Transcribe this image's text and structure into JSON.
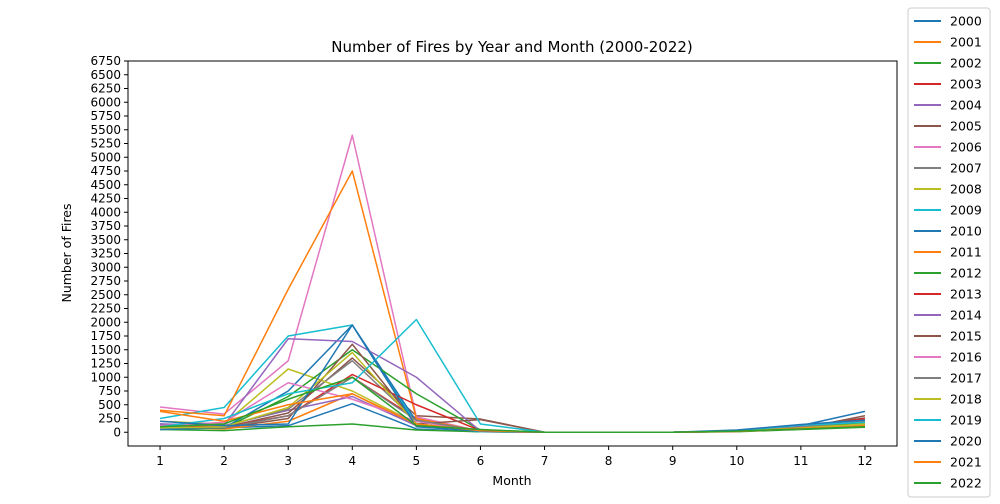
{
  "chart_data": {
    "type": "line",
    "title": "Number of Fires by Year and Month (2000-2022)",
    "xlabel": "Month",
    "ylabel": "Number of Fires",
    "categories": [
      "1",
      "2",
      "3",
      "4",
      "5",
      "6",
      "7",
      "8",
      "9",
      "10",
      "11",
      "12"
    ],
    "ylim": [
      -250,
      6750
    ],
    "yticks": [
      0,
      250,
      500,
      750,
      1000,
      1250,
      1500,
      1750,
      2000,
      2250,
      2500,
      2750,
      3000,
      3250,
      3500,
      3750,
      4000,
      4250,
      4500,
      4750,
      5000,
      5250,
      5500,
      5750,
      6000,
      6250,
      6500,
      6750
    ],
    "grid": false,
    "legend_position": "right",
    "series": [
      {
        "name": "2000",
        "color": "#1f77b4",
        "values": [
          150,
          80,
          120,
          520,
          60,
          10,
          0,
          0,
          0,
          20,
          120,
          380
        ]
      },
      {
        "name": "2001",
        "color": "#ff7f0e",
        "values": [
          100,
          60,
          200,
          700,
          120,
          20,
          0,
          0,
          0,
          15,
          60,
          100
        ]
      },
      {
        "name": "2002",
        "color": "#2ca02c",
        "values": [
          50,
          30,
          100,
          150,
          40,
          10,
          0,
          0,
          0,
          10,
          50,
          90
        ]
      },
      {
        "name": "2003",
        "color": "#d62728",
        "values": [
          120,
          100,
          300,
          1000,
          250,
          20,
          0,
          0,
          0,
          20,
          80,
          150
        ]
      },
      {
        "name": "2004",
        "color": "#9467bd",
        "values": [
          150,
          120,
          400,
          650,
          120,
          15,
          0,
          0,
          0,
          20,
          90,
          200
        ]
      },
      {
        "name": "2005",
        "color": "#8c564b",
        "values": [
          100,
          90,
          350,
          1350,
          300,
          240,
          0,
          0,
          0,
          15,
          100,
          260
        ]
      },
      {
        "name": "2006",
        "color": "#e377c2",
        "values": [
          460,
          330,
          1300,
          5400,
          280,
          20,
          0,
          0,
          0,
          20,
          80,
          190
        ]
      },
      {
        "name": "2007",
        "color": "#7f7f7f",
        "values": [
          120,
          110,
          420,
          1300,
          200,
          30,
          0,
          0,
          0,
          25,
          90,
          170
        ]
      },
      {
        "name": "2008",
        "color": "#bcbd22",
        "values": [
          200,
          150,
          1150,
          750,
          160,
          20,
          0,
          0,
          0,
          15,
          70,
          120
        ]
      },
      {
        "name": "2009",
        "color": "#17becf",
        "values": [
          250,
          450,
          1750,
          1950,
          150,
          10,
          0,
          0,
          0,
          15,
          80,
          140
        ]
      },
      {
        "name": "2010",
        "color": "#1f77b4",
        "values": [
          50,
          80,
          750,
          1950,
          200,
          30,
          0,
          0,
          0,
          20,
          110,
          200
        ]
      },
      {
        "name": "2011",
        "color": "#ff7f0e",
        "values": [
          400,
          300,
          2600,
          4750,
          250,
          20,
          0,
          0,
          0,
          15,
          70,
          120
        ]
      },
      {
        "name": "2012",
        "color": "#2ca02c",
        "values": [
          90,
          70,
          650,
          1500,
          700,
          40,
          0,
          0,
          0,
          20,
          90,
          160
        ]
      },
      {
        "name": "2013",
        "color": "#d62728",
        "values": [
          120,
          90,
          300,
          1050,
          500,
          30,
          0,
          0,
          0,
          20,
          80,
          250
        ]
      },
      {
        "name": "2014",
        "color": "#9467bd",
        "values": [
          150,
          130,
          1700,
          1650,
          1000,
          20,
          0,
          0,
          0,
          20,
          100,
          220
        ]
      },
      {
        "name": "2015",
        "color": "#8c564b",
        "values": [
          100,
          80,
          250,
          1600,
          150,
          230,
          0,
          0,
          0,
          20,
          70,
          300
        ]
      },
      {
        "name": "2016",
        "color": "#e377c2",
        "values": [
          120,
          180,
          900,
          600,
          200,
          15,
          0,
          0,
          0,
          20,
          60,
          150
        ]
      },
      {
        "name": "2017",
        "color": "#7f7f7f",
        "values": [
          90,
          80,
          300,
          1000,
          220,
          25,
          0,
          0,
          0,
          15,
          90,
          200
        ]
      },
      {
        "name": "2018",
        "color": "#bcbd22",
        "values": [
          80,
          100,
          450,
          1450,
          150,
          20,
          0,
          0,
          0,
          20,
          80,
          150
        ]
      },
      {
        "name": "2019",
        "color": "#17becf",
        "values": [
          100,
          250,
          700,
          900,
          2050,
          150,
          0,
          0,
          0,
          30,
          130,
          180
        ]
      },
      {
        "name": "2020",
        "color": "#1f77b4",
        "values": [
          200,
          120,
          150,
          1950,
          100,
          20,
          0,
          0,
          0,
          40,
          140,
          220
        ]
      },
      {
        "name": "2021",
        "color": "#ff7f0e",
        "values": [
          380,
          200,
          500,
          700,
          150,
          30,
          0,
          0,
          0,
          15,
          70,
          110
        ]
      },
      {
        "name": "2022",
        "color": "#2ca02c",
        "values": [
          100,
          150,
          600,
          1000,
          120,
          50,
          0,
          0,
          0,
          20,
          60,
          100
        ]
      }
    ]
  }
}
